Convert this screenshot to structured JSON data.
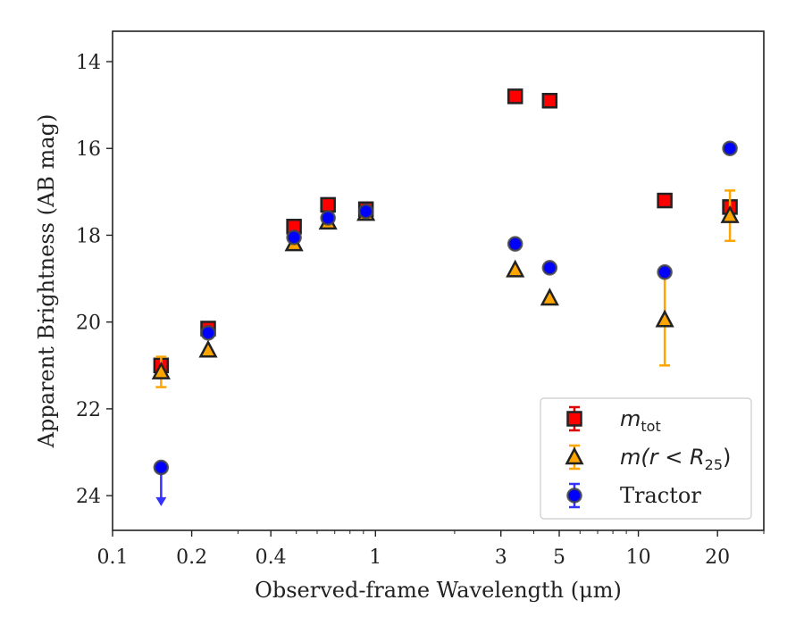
{
  "chart_data": {
    "type": "scatter",
    "xlabel": "Observed-frame Wavelength (μm)",
    "ylabel": "Apparent Brightness (AB mag)",
    "x_scale": "log",
    "xlim": [
      0.1,
      30
    ],
    "ylim": [
      24.8,
      13.3
    ],
    "y_inverted": true,
    "x_ticks": [
      0.1,
      0.2,
      0.4,
      1,
      3,
      5,
      10,
      20
    ],
    "x_tick_labels": [
      "0.1",
      "0.2",
      "0.4",
      "1",
      "3",
      "5",
      "10",
      "20"
    ],
    "y_ticks": [
      14,
      16,
      18,
      20,
      22,
      24
    ],
    "y_tick_labels": [
      "14",
      "16",
      "18",
      "20",
      "22",
      "24"
    ],
    "grid": false,
    "legend_position": "bottom-right",
    "series": [
      {
        "name": "m_tot",
        "name_main": "m",
        "name_sub": "tot",
        "marker": "square",
        "color": "#ff0000",
        "edge": "#222222",
        "err_color": "#dd0000",
        "points": [
          {
            "x": 0.153,
            "y": 21.0,
            "err": 0.05
          },
          {
            "x": 0.231,
            "y": 20.15,
            "err": 0.05
          },
          {
            "x": 0.49,
            "y": 17.8,
            "err": 0.05
          },
          {
            "x": 0.66,
            "y": 17.3,
            "err": 0.05
          },
          {
            "x": 0.92,
            "y": 17.4,
            "err": 0.05
          },
          {
            "x": 3.4,
            "y": 14.8,
            "err": 0.05
          },
          {
            "x": 4.6,
            "y": 14.9,
            "err": 0.05
          },
          {
            "x": 12.6,
            "y": 17.2,
            "err": 0.05
          },
          {
            "x": 22.3,
            "y": 17.35,
            "err": 0.05
          }
        ]
      },
      {
        "name": "m(r < R_25)",
        "name_main": "m(r < R",
        "name_sub": "25",
        "name_close": ")",
        "marker": "triangle",
        "color": "#ffa500",
        "edge": "#222222",
        "err_color": "#ffa500",
        "points": [
          {
            "x": 0.153,
            "y": 21.15,
            "err": 0.35
          },
          {
            "x": 0.231,
            "y": 20.65,
            "err": 0.05
          },
          {
            "x": 0.49,
            "y": 18.2,
            "err": 0.05
          },
          {
            "x": 0.66,
            "y": 17.7,
            "err": 0.05
          },
          {
            "x": 0.92,
            "y": 17.5,
            "err": 0.05
          },
          {
            "x": 3.4,
            "y": 18.8,
            "err": 0.05
          },
          {
            "x": 4.6,
            "y": 19.45,
            "err": 0.05
          },
          {
            "x": 12.6,
            "y": 19.95,
            "err": 1.05
          },
          {
            "x": 22.3,
            "y": 17.55,
            "err": 0.58
          }
        ]
      },
      {
        "name": "Tractor",
        "marker": "circle",
        "color": "#0000ff",
        "edge": "#444444",
        "err_color": "#3333ff",
        "points": [
          {
            "x": 0.153,
            "y": 23.35,
            "upper_limit": true
          },
          {
            "x": 0.231,
            "y": 20.25,
            "err": 0.05
          },
          {
            "x": 0.49,
            "y": 18.05,
            "err": 0.05
          },
          {
            "x": 0.66,
            "y": 17.6,
            "err": 0.05
          },
          {
            "x": 0.92,
            "y": 17.45,
            "err": 0.05
          },
          {
            "x": 3.4,
            "y": 18.2,
            "err": 0.05
          },
          {
            "x": 4.6,
            "y": 18.75,
            "err": 0.05
          },
          {
            "x": 12.6,
            "y": 18.85,
            "err": 0.05
          },
          {
            "x": 22.3,
            "y": 16.0,
            "err": 0.05
          }
        ]
      }
    ]
  }
}
